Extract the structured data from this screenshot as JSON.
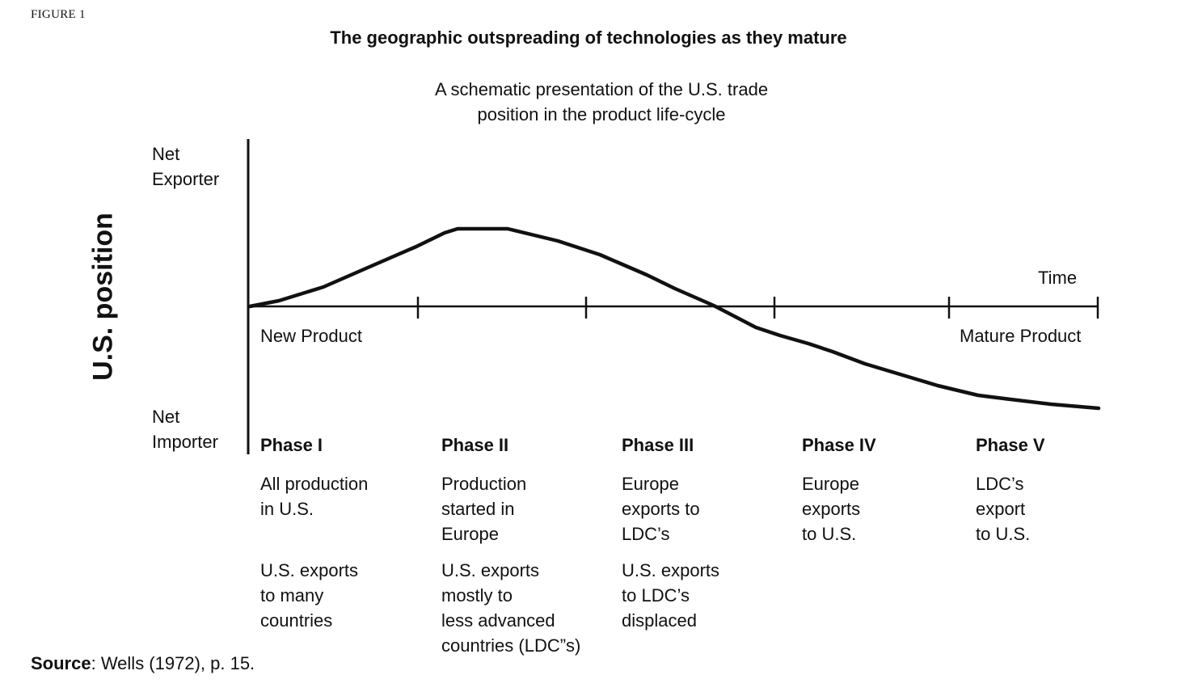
{
  "figure_label": "FIGURE 1",
  "title": "The geographic outspreading of technologies as they mature",
  "subtitle": [
    "A schematic presentation of the U.S. trade",
    "position in the product life-cycle"
  ],
  "y_axis": {
    "label": "U.S. position",
    "top": [
      "Net",
      "Exporter"
    ],
    "bottom": [
      "Net",
      "Importer"
    ]
  },
  "x_axis": {
    "label": "Time",
    "start": "New Product",
    "end": "Mature Product"
  },
  "phases": [
    {
      "name": "Phase I",
      "desc": [
        "All production",
        "in U.S."
      ],
      "note": [
        "U.S. exports",
        "to many",
        "countries"
      ]
    },
    {
      "name": "Phase II",
      "desc": [
        "Production",
        "started in",
        "Europe"
      ],
      "note": [
        "U.S. exports",
        "mostly to",
        "less advanced",
        "countries (LDC”s)"
      ]
    },
    {
      "name": "Phase III",
      "desc": [
        "Europe",
        "exports to",
        "LDC’s"
      ],
      "note": [
        "U.S. exports",
        "to LDC’s",
        "displaced"
      ]
    },
    {
      "name": "Phase IV",
      "desc": [
        "Europe",
        "exports",
        "to U.S."
      ],
      "note": []
    },
    {
      "name": "Phase V",
      "desc": [
        "LDC’s",
        "export",
        "to U.S."
      ],
      "note": []
    }
  ],
  "source": {
    "label": "Source",
    "text": ": Wells (1972), p. 15."
  }
}
